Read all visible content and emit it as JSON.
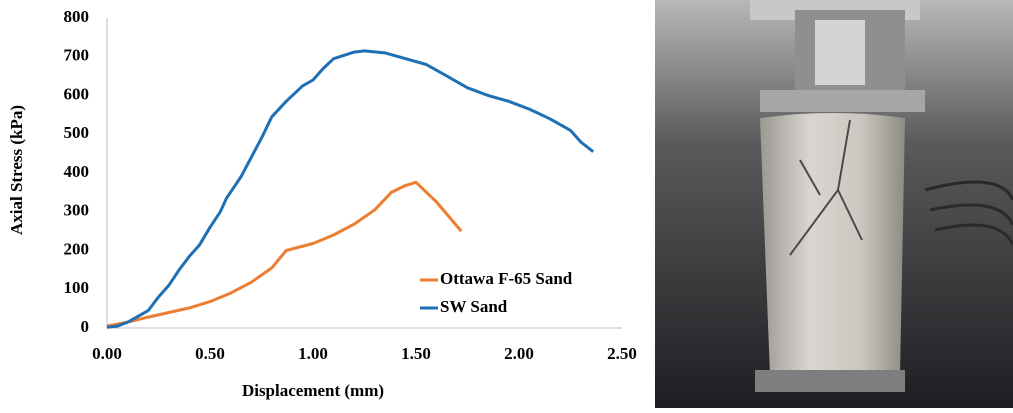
{
  "chart_data": {
    "type": "line",
    "xlabel": "Displacement (mm)",
    "ylabel": "Axial Stress (kPa)",
    "xlim": [
      0,
      2.5
    ],
    "ylim": [
      0,
      800
    ],
    "xticks": [
      {
        "value": 0,
        "label": "0.00"
      },
      {
        "value": 0.5,
        "label": "0.50"
      },
      {
        "value": 1,
        "label": "1.00"
      },
      {
        "value": 1.5,
        "label": "1.50"
      },
      {
        "value": 2,
        "label": "2.00"
      },
      {
        "value": 2.5,
        "label": "2.50"
      }
    ],
    "yticks": [
      0,
      100,
      200,
      300,
      400,
      500,
      600,
      700,
      800
    ],
    "grid": false,
    "legend": "lower right",
    "series": [
      {
        "name": "Ottawa F-65 Sand",
        "color": "#ed7d31",
        "x": [
          0,
          0.1,
          0.2,
          0.3,
          0.4,
          0.5,
          0.6,
          0.7,
          0.8,
          0.87,
          1.0,
          1.1,
          1.2,
          1.3,
          1.38,
          1.45,
          1.5,
          1.6,
          1.72
        ],
        "values": [
          5,
          15,
          28,
          40,
          52,
          68,
          90,
          118,
          155,
          200,
          218,
          240,
          268,
          305,
          350,
          368,
          376,
          325,
          250
        ]
      },
      {
        "name": "SW Sand",
        "color": "#1f6fb5",
        "x": [
          0,
          0.05,
          0.1,
          0.15,
          0.2,
          0.25,
          0.3,
          0.35,
          0.4,
          0.45,
          0.5,
          0.55,
          0.58,
          0.65,
          0.7,
          0.75,
          0.8,
          0.87,
          0.95,
          1.0,
          1.05,
          1.1,
          1.2,
          1.25,
          1.35,
          1.45,
          1.55,
          1.65,
          1.75,
          1.85,
          1.95,
          2.05,
          2.15,
          2.25,
          2.3,
          2.36
        ],
        "values": [
          2,
          5,
          15,
          30,
          45,
          80,
          110,
          150,
          185,
          215,
          260,
          300,
          335,
          390,
          440,
          490,
          545,
          585,
          625,
          640,
          670,
          695,
          712,
          715,
          710,
          695,
          680,
          650,
          620,
          600,
          585,
          565,
          540,
          510,
          480,
          455
        ]
      }
    ]
  }
}
